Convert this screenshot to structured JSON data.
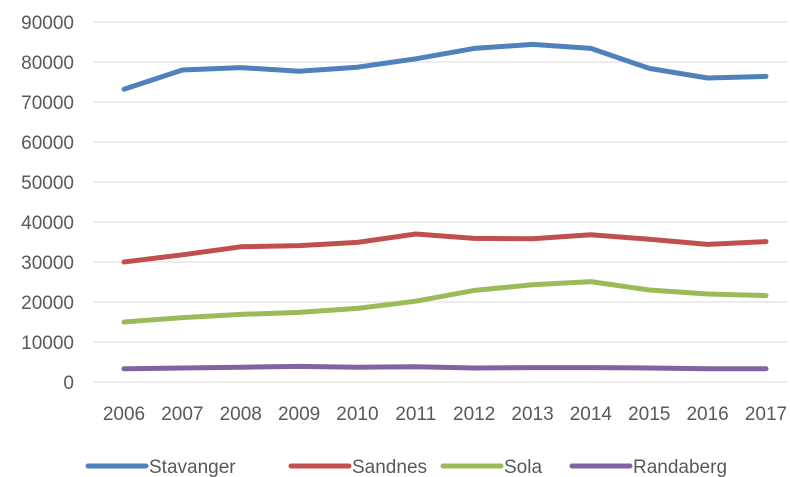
{
  "chart_data": {
    "type": "line",
    "title": "",
    "xlabel": "",
    "ylabel": "",
    "x": [
      "2006",
      "2007",
      "2008",
      "2009",
      "2010",
      "2011",
      "2012",
      "2013",
      "2014",
      "2015",
      "2016",
      "2017"
    ],
    "ylim": [
      0,
      90000
    ],
    "yticks": [
      0,
      10000,
      20000,
      30000,
      40000,
      50000,
      60000,
      70000,
      80000,
      90000
    ],
    "grid": true,
    "legend_position": "bottom",
    "series": [
      {
        "name": "Stavanger",
        "color": "#4f81bd",
        "values": [
          73200,
          78000,
          78600,
          77700,
          78700,
          80800,
          83400,
          84400,
          83400,
          78400,
          76000,
          76400
        ]
      },
      {
        "name": "Sandnes",
        "color": "#c0504d",
        "values": [
          30000,
          31800,
          33800,
          34100,
          34900,
          37000,
          35900,
          35800,
          36800,
          35700,
          34400,
          35100
        ]
      },
      {
        "name": "Sola",
        "color": "#9bbb59",
        "values": [
          15000,
          16100,
          16900,
          17400,
          18400,
          20200,
          22900,
          24300,
          25100,
          23000,
          22000,
          21600
        ]
      },
      {
        "name": "Randaberg",
        "color": "#8064a2",
        "values": [
          3300,
          3500,
          3700,
          3900,
          3700,
          3800,
          3500,
          3600,
          3600,
          3500,
          3300,
          3300
        ]
      }
    ]
  }
}
